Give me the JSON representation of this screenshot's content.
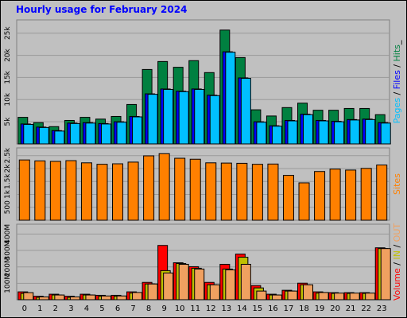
{
  "chart_data": {
    "type": "bar",
    "title": "Hourly usage for February 2024",
    "categories": [
      "0",
      "1",
      "2",
      "3",
      "4",
      "5",
      "6",
      "7",
      "8",
      "9",
      "10",
      "11",
      "12",
      "13",
      "14",
      "15",
      "16",
      "17",
      "18",
      "19",
      "20",
      "21",
      "22",
      "23"
    ],
    "panels": [
      {
        "id": "hits",
        "ticks": [
          "5k",
          "10k",
          "15k",
          "20k",
          "25k"
        ],
        "ylim": [
          0,
          28000
        ],
        "series_labels": [
          "Pages",
          " / ",
          "Files",
          " / ",
          "Hits",
          "_"
        ],
        "series": [
          {
            "name": "Hits",
            "color": "#008040",
            "values": [
              6000,
              4800,
              3900,
              5300,
              6000,
              5600,
              6200,
              8900,
              16800,
              18600,
              17300,
              18800,
              16100,
              25700,
              19500,
              7700,
              6300,
              8200,
              9200,
              7600,
              7600,
              8000,
              8000,
              6600
            ]
          },
          {
            "name": "Files",
            "color": "#0000ff",
            "values": [
              4500,
              3800,
              3000,
              4700,
              4800,
              4600,
              5000,
              6200,
              11300,
              12400,
              11900,
              12400,
              11000,
              20800,
              14900,
              5000,
              4100,
              5300,
              6700,
              5300,
              5100,
              5500,
              5600,
              4800
            ]
          },
          {
            "name": "Pages",
            "color": "#00c0ff",
            "values": [
              4400,
              3700,
              2900,
              4600,
              4700,
              4500,
              4900,
              6100,
              11200,
              12300,
              11800,
              12300,
              10900,
              20700,
              14800,
              4900,
              4000,
              5200,
              6600,
              5200,
              5000,
              5400,
              5500,
              4700
            ]
          }
        ]
      },
      {
        "id": "sites",
        "ticks": [
          "500",
          "1k",
          "1.5k",
          "2k",
          "2.5k"
        ],
        "ylim": [
          0,
          3000
        ],
        "series_labels": [
          "Sites"
        ],
        "series": [
          {
            "name": "Sites",
            "color": "#ff8000",
            "values": [
              2500,
              2460,
              2440,
              2470,
              2380,
              2320,
              2340,
              2410,
              2670,
              2760,
              2570,
              2530,
              2380,
              2370,
              2360,
              2320,
              2330,
              1860,
              1550,
              2020,
              2120,
              2080,
              2150,
              2290
            ]
          }
        ]
      },
      {
        "id": "volume",
        "ticks": [
          "100M",
          "200M",
          "300M",
          "400M"
        ],
        "ylim": [
          0,
          480
        ],
        "series_labels": [
          "Volume",
          " / ",
          "IN",
          " / ",
          "OUT"
        ],
        "series": [
          {
            "name": "Volume",
            "color": "#ff0000",
            "values": [
              50,
              22,
              35,
              22,
              35,
              28,
              28,
              50,
              110,
              345,
              235,
              210,
              110,
              225,
              290,
              90,
              35,
              60,
              105,
              50,
              45,
              45,
              45,
              330
            ]
          },
          {
            "name": "IN",
            "color": "#c0c000",
            "values": [
              40,
              15,
              30,
              15,
              30,
              22,
              22,
              42,
              100,
              185,
              230,
              200,
              95,
              195,
              270,
              75,
              30,
              55,
              95,
              42,
              40,
              40,
              40,
              325
            ]
          },
          {
            "name": "OUT",
            "color": "#f0a060",
            "values": [
              45,
              18,
              30,
              18,
              30,
              24,
              24,
              46,
              100,
              170,
              225,
              195,
              95,
              190,
              225,
              55,
              30,
              55,
              95,
              46,
              42,
              42,
              42,
              325
            ]
          }
        ]
      }
    ]
  }
}
